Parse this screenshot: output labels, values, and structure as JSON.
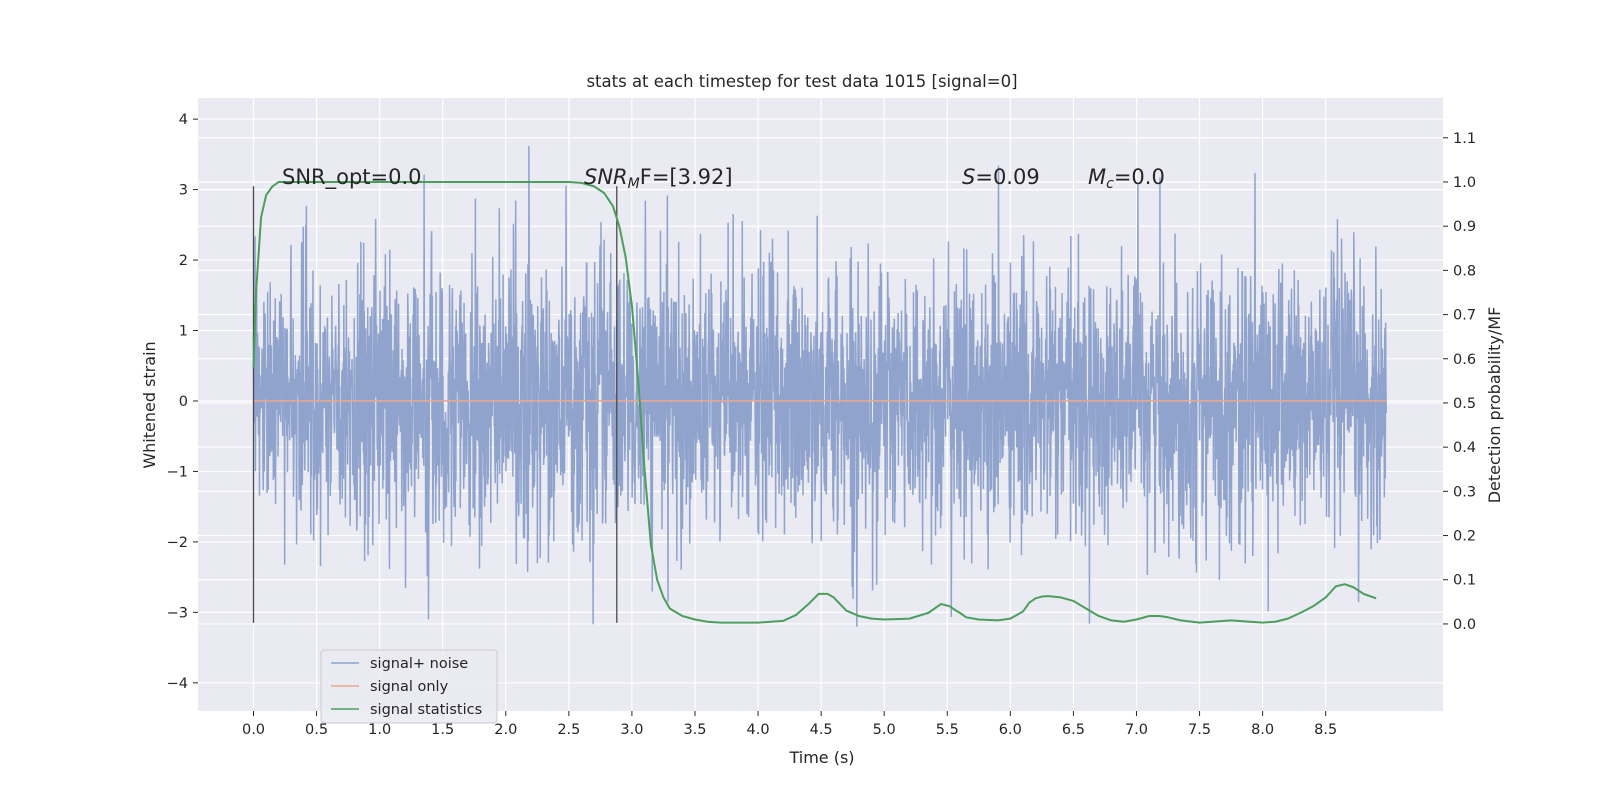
{
  "chart_data": {
    "type": "line",
    "title": "stats at each timestep for test data 1015 [signal=0]",
    "xlabel": "Time (s)",
    "ylabel": "Whitened strain",
    "ylabel_right": "Detection probability/MF",
    "xlim": [
      -0.44,
      9.43
    ],
    "ylim": [
      -4.4,
      4.3
    ],
    "ylim_right": [
      -0.197,
      1.19
    ],
    "xticks": [
      "0.0",
      "0.5",
      "1.0",
      "1.5",
      "2.0",
      "2.5",
      "3.0",
      "3.5",
      "4.0",
      "4.5",
      "5.0",
      "5.5",
      "6.0",
      "6.5",
      "7.0",
      "7.5",
      "8.0",
      "8.5"
    ],
    "yticks": [
      "4",
      "3",
      "2",
      "1",
      "0",
      "−1",
      "−2",
      "−3",
      "−4"
    ],
    "yticks_right": [
      "1.1",
      "1.0",
      "0.9",
      "0.8",
      "0.7",
      "0.6",
      "0.5",
      "0.4",
      "0.3",
      "0.2",
      "0.1",
      "0.0"
    ],
    "grid": true,
    "legend_position": "lower-left",
    "annotations": [
      "SNR_opt=0.0",
      "SNR",
      "M",
      "F=[3.92]",
      "S",
      "=0.09",
      "M",
      "c",
      "=0.0"
    ],
    "vlines": [
      0.0,
      2.88
    ],
    "vline_range": [
      -3.15,
      3.05
    ],
    "series": [
      {
        "name": "signal+ noise",
        "color": "#8fa3cd",
        "noise_envelope": {
          "t_start": 0.0,
          "t_end": 8.98,
          "dense_band": [
            -1.3,
            1.35
          ],
          "typical_peak": 2.7,
          "max": 3.92,
          "min": -4.05
        }
      },
      {
        "name": "signal only",
        "color": "#e8a891",
        "t": [
          0.0,
          8.98
        ],
        "values": [
          0.0,
          0.0
        ]
      },
      {
        "name": "signal statistics",
        "color": "#4c9e5c",
        "t": [
          0.0,
          0.02,
          0.06,
          0.1,
          0.15,
          0.2,
          0.3,
          0.5,
          1.0,
          1.5,
          2.0,
          2.3,
          2.5,
          2.6,
          2.7,
          2.78,
          2.85,
          2.9,
          2.95,
          3.0,
          3.05,
          3.1,
          3.15,
          3.2,
          3.25,
          3.3,
          3.4,
          3.5,
          3.6,
          3.7,
          3.8,
          4.0,
          4.2,
          4.3,
          4.4,
          4.48,
          4.55,
          4.6,
          4.65,
          4.7,
          4.8,
          4.9,
          5.0,
          5.2,
          5.35,
          5.45,
          5.52,
          5.57,
          5.6,
          5.65,
          5.75,
          5.9,
          6.0,
          6.1,
          6.15,
          6.2,
          6.25,
          6.3,
          6.4,
          6.5,
          6.6,
          6.7,
          6.8,
          6.9,
          7.0,
          7.1,
          7.18,
          7.25,
          7.35,
          7.5,
          7.6,
          7.75,
          7.9,
          8.0,
          8.1,
          8.2,
          8.3,
          8.4,
          8.5,
          8.58,
          8.65,
          8.72,
          8.8,
          8.9
        ],
        "values": [
          0.58,
          0.75,
          0.92,
          0.97,
          0.99,
          1.0,
          1.0,
          1.0,
          1.0,
          1.0,
          1.0,
          1.0,
          1.0,
          0.998,
          0.99,
          0.975,
          0.945,
          0.9,
          0.83,
          0.72,
          0.55,
          0.35,
          0.18,
          0.1,
          0.06,
          0.035,
          0.018,
          0.01,
          0.005,
          0.003,
          0.003,
          0.003,
          0.007,
          0.02,
          0.045,
          0.068,
          0.068,
          0.06,
          0.045,
          0.03,
          0.018,
          0.012,
          0.01,
          0.012,
          0.025,
          0.045,
          0.04,
          0.03,
          0.025,
          0.015,
          0.01,
          0.008,
          0.012,
          0.028,
          0.048,
          0.058,
          0.062,
          0.063,
          0.06,
          0.052,
          0.035,
          0.018,
          0.008,
          0.005,
          0.01,
          0.018,
          0.018,
          0.015,
          0.008,
          0.003,
          0.005,
          0.008,
          0.005,
          0.003,
          0.005,
          0.012,
          0.025,
          0.04,
          0.06,
          0.085,
          0.09,
          0.083,
          0.068,
          0.058
        ]
      }
    ]
  }
}
